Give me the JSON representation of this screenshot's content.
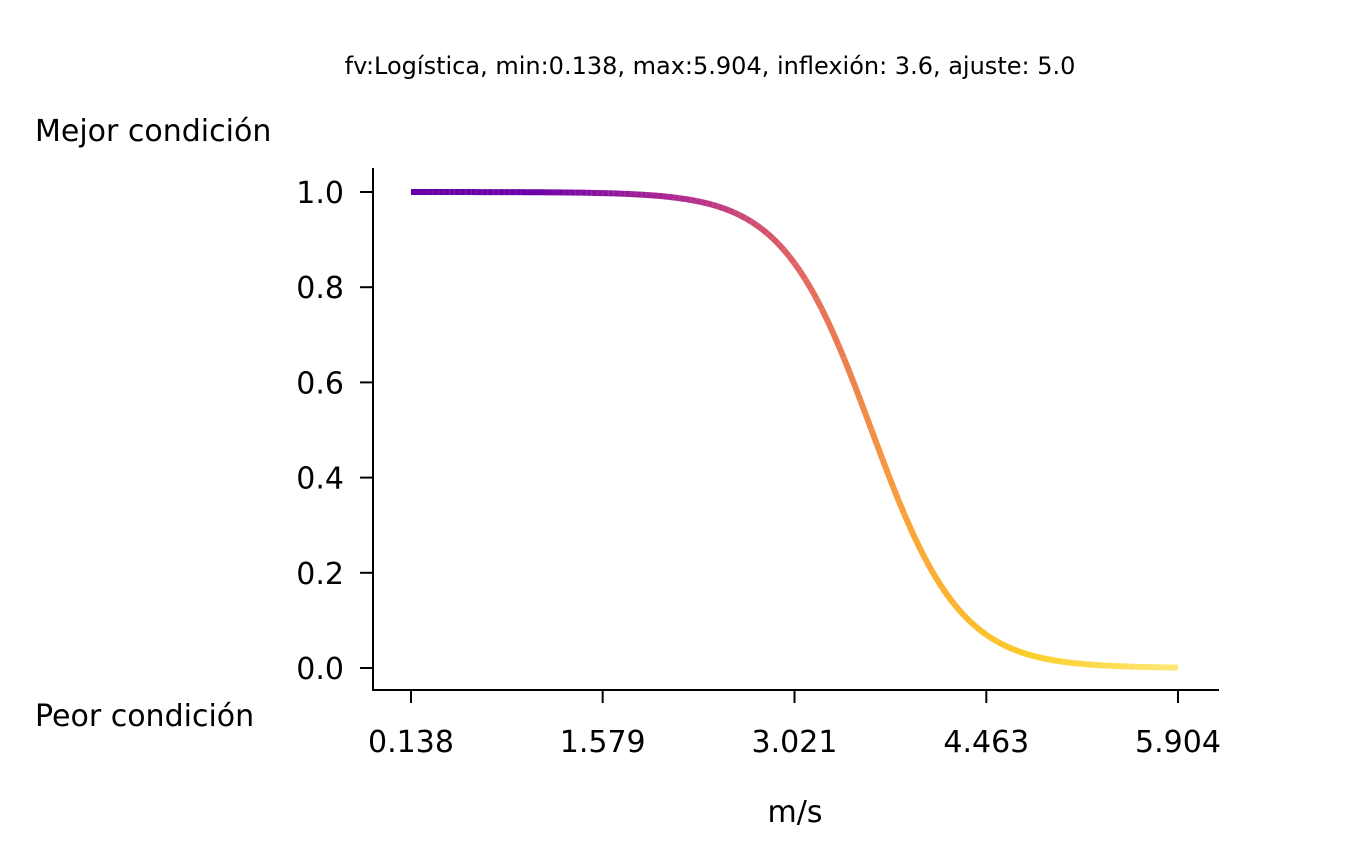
{
  "chart_data": {
    "type": "line",
    "title": "fv:Logística, min:0.138, max:5.904, inflexión: 3.6, ajuste: 5.0",
    "xlabel": "m/s",
    "ylabel_top": "Mejor condición",
    "ylabel_bottom": "Peor condición",
    "xlim": [
      0.138,
      5.904
    ],
    "ylim": [
      0.0,
      1.0
    ],
    "xticks": [
      0.138,
      1.579,
      3.021,
      4.463,
      5.904
    ],
    "xtick_labels": [
      "0.138",
      "1.579",
      "3.021",
      "4.463",
      "5.904"
    ],
    "yticks": [
      0.0,
      0.2,
      0.4,
      0.6,
      0.8,
      1.0
    ],
    "ytick_labels": [
      "0.0",
      "0.2",
      "0.4",
      "0.6",
      "0.8",
      "1.0"
    ],
    "curve": {
      "function": "logistic",
      "min": 0.138,
      "max": 5.904,
      "inflection": 3.6,
      "slope": 5.0
    },
    "colormap": "plasma",
    "grid": false,
    "spines": [
      "left",
      "bottom"
    ]
  }
}
